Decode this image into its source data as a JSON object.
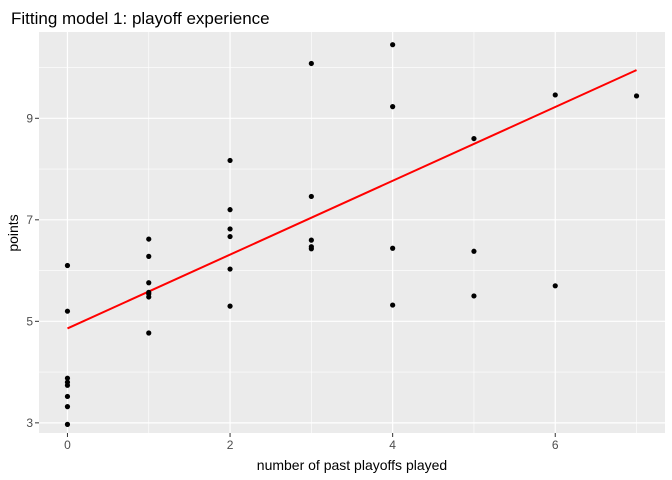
{
  "chart_data": {
    "type": "scatter",
    "title": "Fitting model 1: playoff experience",
    "xlabel": "number of past playoffs played",
    "ylabel": "points",
    "xlim": [
      -0.35,
      7.35
    ],
    "ylim": [
      2.8,
      10.7
    ],
    "xticks": [
      0,
      2,
      4,
      6
    ],
    "yticks": [
      3,
      5,
      7,
      9
    ],
    "grid": true,
    "legend": "none",
    "colors": {
      "panel": "#ebebeb",
      "grid_major": "#ffffff",
      "points": "#000000",
      "fit_line": "#ff0000",
      "tick_label": "#4d4d4d"
    },
    "points": [
      {
        "x": 0,
        "y": 6.1
      },
      {
        "x": 0,
        "y": 5.2
      },
      {
        "x": 0,
        "y": 3.88
      },
      {
        "x": 0,
        "y": 3.8
      },
      {
        "x": 0,
        "y": 3.74
      },
      {
        "x": 0,
        "y": 3.52
      },
      {
        "x": 0,
        "y": 3.32
      },
      {
        "x": 0,
        "y": 2.97
      },
      {
        "x": 1,
        "y": 6.62
      },
      {
        "x": 1,
        "y": 6.28
      },
      {
        "x": 1,
        "y": 5.76
      },
      {
        "x": 1,
        "y": 5.57
      },
      {
        "x": 1,
        "y": 5.54
      },
      {
        "x": 1,
        "y": 5.48
      },
      {
        "x": 1,
        "y": 4.77
      },
      {
        "x": 2,
        "y": 8.17
      },
      {
        "x": 2,
        "y": 7.2
      },
      {
        "x": 2,
        "y": 6.82
      },
      {
        "x": 2,
        "y": 6.67
      },
      {
        "x": 2,
        "y": 6.03
      },
      {
        "x": 2,
        "y": 5.3
      },
      {
        "x": 3,
        "y": 10.08
      },
      {
        "x": 3,
        "y": 7.46
      },
      {
        "x": 3,
        "y": 6.6
      },
      {
        "x": 3,
        "y": 6.47
      },
      {
        "x": 3,
        "y": 6.43
      },
      {
        "x": 4,
        "y": 10.45
      },
      {
        "x": 4,
        "y": 9.23
      },
      {
        "x": 4,
        "y": 6.44
      },
      {
        "x": 4,
        "y": 5.32
      },
      {
        "x": 5,
        "y": 8.6
      },
      {
        "x": 5,
        "y": 6.38
      },
      {
        "x": 5,
        "y": 5.5
      },
      {
        "x": 6,
        "y": 9.46
      },
      {
        "x": 6,
        "y": 5.7
      },
      {
        "x": 7,
        "y": 9.44
      }
    ],
    "fit_line": {
      "x": [
        0,
        7
      ],
      "y": [
        4.86,
        9.95
      ]
    }
  }
}
